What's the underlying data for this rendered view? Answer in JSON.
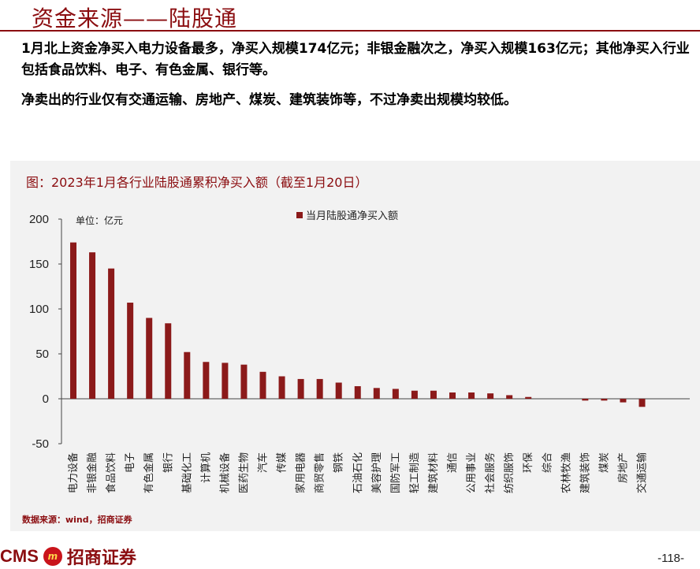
{
  "header": {
    "title": "资金来源——陆股通"
  },
  "text": {
    "para1": "1月北上资金净买入电力设备最多，净买入规模174亿元；非银金融次之，净买入规模163亿元；其他净买入行业包括食品饮料、电子、有色金属、银行等。",
    "para2": "净卖出的行业仅有交通运输、房地产、煤炭、建筑装饰等，不过净卖出规模均较低。"
  },
  "chart": {
    "title": "图：2023年1月各行业陆股通累积净买入额（截至1月20日）",
    "unit": "单位：亿元",
    "source": "数据来源：wind，招商证券",
    "bar_color": "#8b1a1a"
  },
  "chart_data": {
    "type": "bar",
    "categories": [
      "电力设备",
      "非银金融",
      "食品饮料",
      "电子",
      "有色金属",
      "银行",
      "基础化工",
      "计算机",
      "机械设备",
      "医药生物",
      "汽车",
      "传媒",
      "家用电器",
      "商贸零售",
      "钢铁",
      "石油石化",
      "美容护理",
      "国防军工",
      "轻工制造",
      "建筑材料",
      "通信",
      "公用事业",
      "社会服务",
      "纺织服饰",
      "环保",
      "综合",
      "农林牧渔",
      "建筑装饰",
      "煤炭",
      "房地产",
      "交通运输"
    ],
    "series": [
      {
        "name": "当月陆股通净买入额",
        "values": [
          174,
          163,
          145,
          107,
          90,
          84,
          52,
          41,
          40,
          38,
          30,
          25,
          22,
          22,
          18,
          14,
          12,
          11,
          9,
          9,
          7,
          7,
          6,
          4,
          2,
          0,
          0,
          -2,
          -2,
          -4,
          -9
        ]
      }
    ],
    "ylim": [
      -50,
      200
    ],
    "yticks": [
      -50,
      0,
      50,
      100,
      150,
      200
    ],
    "legend": "top"
  },
  "footer": {
    "logo_text": "CMS",
    "logo_mark": "m",
    "company": "招商证券",
    "page": "-118-"
  }
}
